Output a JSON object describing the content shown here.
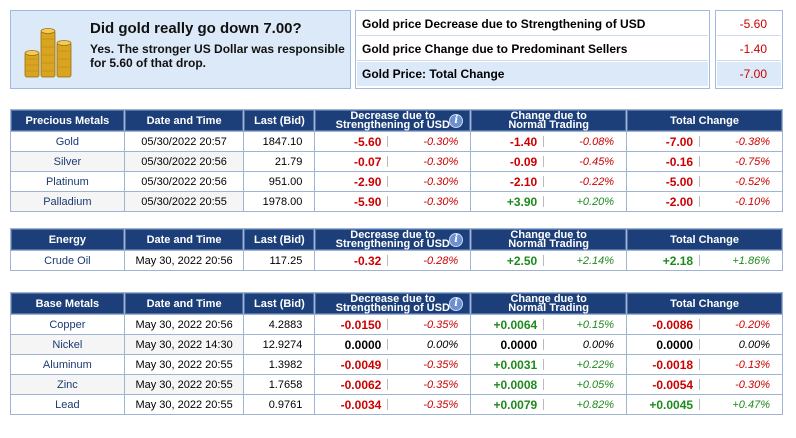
{
  "summary": {
    "question": "Did gold really go down 7.00?",
    "answer": "Yes. The stronger US Dollar was responsible for 5.60 of that drop.",
    "rows": [
      {
        "label": "Gold price Decrease due to Strengthening of USD",
        "value": "-5.60"
      },
      {
        "label": "Gold price Change due to Predominant Sellers",
        "value": "-1.40"
      },
      {
        "label": "Gold Price: Total Change",
        "value": "-7.00"
      }
    ]
  },
  "headers": {
    "date_time": "Date and Time",
    "last_bid": "Last (Bid)",
    "decrease_l1": "Decrease due to",
    "decrease_l2": "Strengthening of USD",
    "change_l1": "Change due to",
    "change_l2": "Normal Trading",
    "total": "Total Change",
    "info_glyph": "i"
  },
  "colors": {
    "header_bg": "#1c3f7a",
    "negative": "#cc0000",
    "positive": "#1e8a1e",
    "panel": "#dce9f8"
  },
  "precious": {
    "title": "Precious Metals",
    "rows": [
      {
        "name": "Gold",
        "date": "05/30/2022 20:57",
        "last": "1847.10",
        "dec": "-5.60",
        "dec_p": "-0.30%",
        "chg": "-1.40",
        "chg_p": "-0.08%",
        "tot": "-7.00",
        "tot_p": "-0.38%"
      },
      {
        "name": "Silver",
        "date": "05/30/2022 20:56",
        "last": "21.79",
        "dec": "-0.07",
        "dec_p": "-0.30%",
        "chg": "-0.09",
        "chg_p": "-0.45%",
        "tot": "-0.16",
        "tot_p": "-0.75%"
      },
      {
        "name": "Platinum",
        "date": "05/30/2022 20:56",
        "last": "951.00",
        "dec": "-2.90",
        "dec_p": "-0.30%",
        "chg": "-2.10",
        "chg_p": "-0.22%",
        "tot": "-5.00",
        "tot_p": "-0.52%"
      },
      {
        "name": "Palladium",
        "date": "05/30/2022 20:55",
        "last": "1978.00",
        "dec": "-5.90",
        "dec_p": "-0.30%",
        "chg": "+3.90",
        "chg_p": "+0.20%",
        "tot": "-2.00",
        "tot_p": "-0.10%"
      }
    ]
  },
  "energy": {
    "title": "Energy",
    "rows": [
      {
        "name": "Crude Oil",
        "date": "May 30, 2022 20:56",
        "last": "117.25",
        "dec": "-0.32",
        "dec_p": "-0.28%",
        "chg": "+2.50",
        "chg_p": "+2.14%",
        "tot": "+2.18",
        "tot_p": "+1.86%"
      }
    ]
  },
  "base": {
    "title": "Base Metals",
    "rows": [
      {
        "name": "Copper",
        "date": "May 30, 2022 20:56",
        "last": "4.2883",
        "dec": "-0.0150",
        "dec_p": "-0.35%",
        "chg": "+0.0064",
        "chg_p": "+0.15%",
        "tot": "-0.0086",
        "tot_p": "-0.20%"
      },
      {
        "name": "Nickel",
        "date": "May 30, 2022 14:30",
        "last": "12.9274",
        "dec": "0.0000",
        "dec_p": "0.00%",
        "chg": "0.0000",
        "chg_p": "0.00%",
        "tot": "0.0000",
        "tot_p": "0.00%"
      },
      {
        "name": "Aluminum",
        "date": "May 30, 2022 20:55",
        "last": "1.3982",
        "dec": "-0.0049",
        "dec_p": "-0.35%",
        "chg": "+0.0031",
        "chg_p": "+0.22%",
        "tot": "-0.0018",
        "tot_p": "-0.13%"
      },
      {
        "name": "Zinc",
        "date": "May 30, 2022 20:55",
        "last": "1.7658",
        "dec": "-0.0062",
        "dec_p": "-0.35%",
        "chg": "+0.0008",
        "chg_p": "+0.05%",
        "tot": "-0.0054",
        "tot_p": "-0.30%"
      },
      {
        "name": "Lead",
        "date": "May 30, 2022 20:55",
        "last": "0.9761",
        "dec": "-0.0034",
        "dec_p": "-0.35%",
        "chg": "+0.0079",
        "chg_p": "+0.82%",
        "tot": "+0.0045",
        "tot_p": "+0.47%"
      }
    ]
  }
}
